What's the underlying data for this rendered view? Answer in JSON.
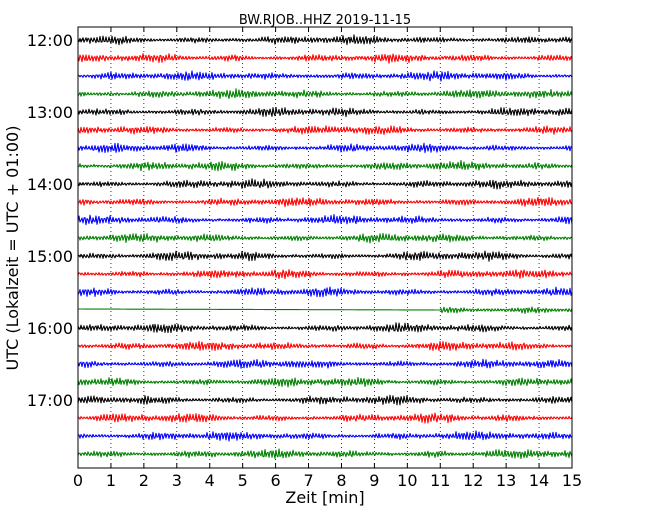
{
  "chart_data": {
    "type": "line",
    "title": "BW.RJOB..HHZ 2019-11-15",
    "xlabel": "Zeit  [min]",
    "ylabel": "UTC (Lokalzeit = UTC + 01:00)",
    "xlim": [
      0,
      15
    ],
    "x_ticks": [
      "0",
      "1",
      "2",
      "3",
      "4",
      "5",
      "6",
      "7",
      "8",
      "9",
      "10",
      "11",
      "12",
      "13",
      "14",
      "15"
    ],
    "y_ticks": [
      "12:00",
      "13:00",
      "14:00",
      "15:00",
      "16:00",
      "17:00"
    ],
    "grid": "vertical dotted",
    "colors": [
      "#000000",
      "#ff0000",
      "#0000ff",
      "#008000"
    ],
    "traces": [
      {
        "start": "12:00",
        "color": "#000000"
      },
      {
        "start": "12:15",
        "color": "#ff0000"
      },
      {
        "start": "12:30",
        "color": "#0000ff"
      },
      {
        "start": "12:45",
        "color": "#008000"
      },
      {
        "start": "13:00",
        "color": "#000000"
      },
      {
        "start": "13:15",
        "color": "#ff0000"
      },
      {
        "start": "13:30",
        "color": "#0000ff"
      },
      {
        "start": "13:45",
        "color": "#008000"
      },
      {
        "start": "14:00",
        "color": "#000000"
      },
      {
        "start": "14:15",
        "color": "#ff0000"
      },
      {
        "start": "14:30",
        "color": "#0000ff"
      },
      {
        "start": "14:45",
        "color": "#008000"
      },
      {
        "start": "15:00",
        "color": "#000000"
      },
      {
        "start": "15:15",
        "color": "#ff0000"
      },
      {
        "start": "15:30",
        "color": "#0000ff"
      },
      {
        "start": "15:45",
        "color": "#008000",
        "data_gap_until_min": 11
      },
      {
        "start": "16:00",
        "color": "#000000"
      },
      {
        "start": "16:15",
        "color": "#ff0000"
      },
      {
        "start": "16:30",
        "color": "#0000ff"
      },
      {
        "start": "16:45",
        "color": "#008000"
      },
      {
        "start": "17:00",
        "color": "#000000"
      },
      {
        "start": "17:15",
        "color": "#ff0000"
      },
      {
        "start": "17:30",
        "color": "#0000ff"
      },
      {
        "start": "17:45",
        "color": "#008000"
      }
    ]
  }
}
